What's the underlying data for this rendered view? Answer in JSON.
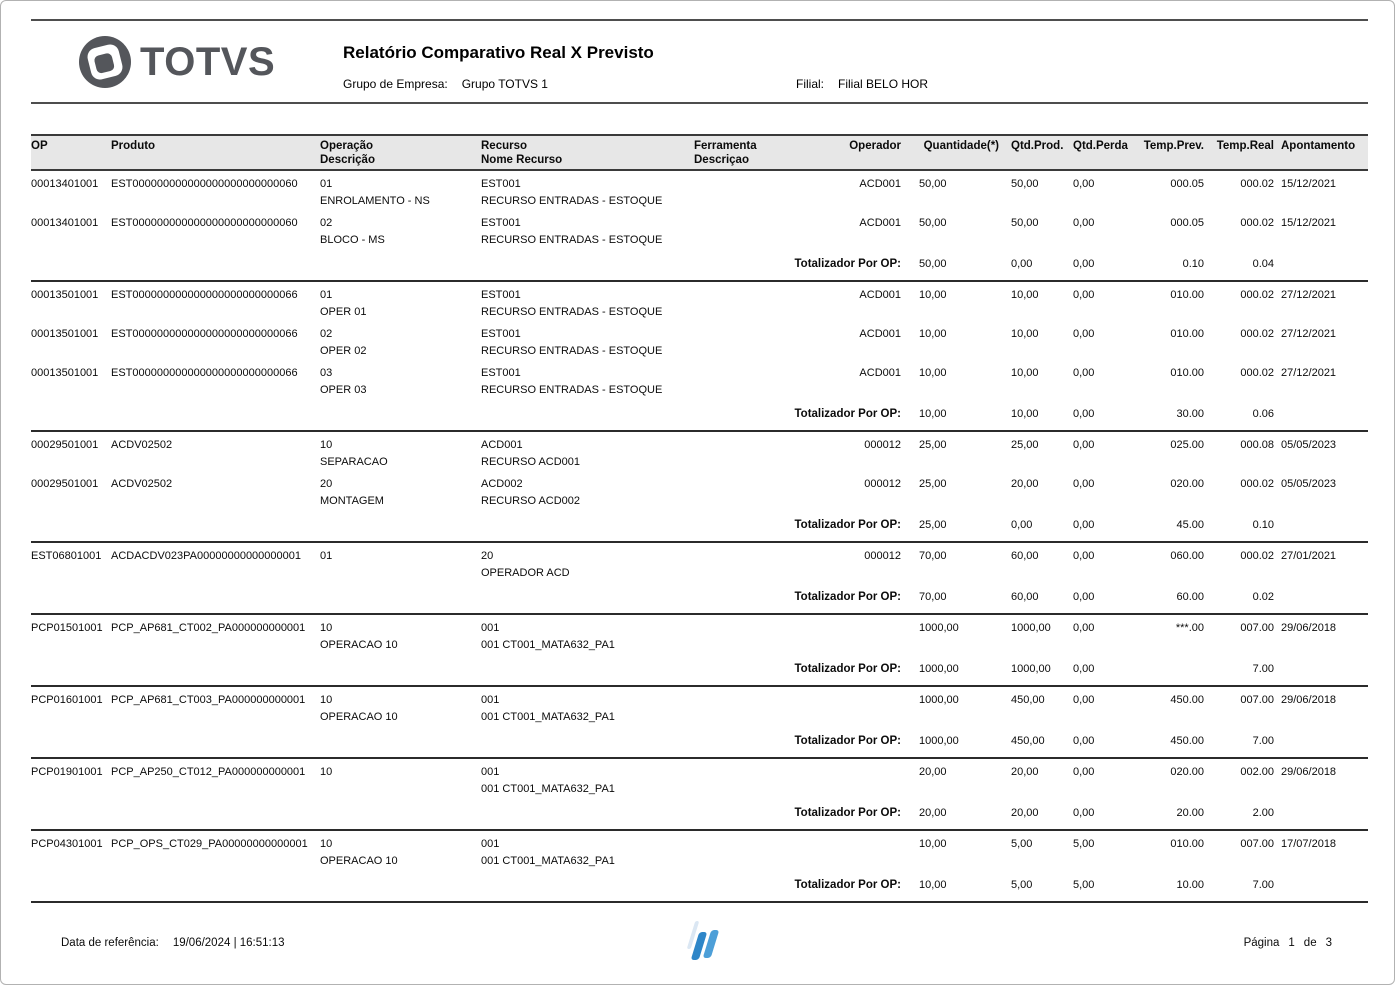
{
  "header": {
    "logo_text": "TOTVS",
    "title": "Relatório Comparativo Real X Previsto",
    "group_label": "Grupo de Empresa:",
    "group_value": "Grupo TOTVS 1",
    "branch_label": "Filial:",
    "branch_value": "Filial BELO HOR"
  },
  "table": {
    "columns": [
      {
        "l1": "OP",
        "l2": ""
      },
      {
        "l1": "Produto",
        "l2": ""
      },
      {
        "l1": "Operação",
        "l2": "Descrição"
      },
      {
        "l1": "Recurso",
        "l2": "Nome Recurso"
      },
      {
        "l1": "Ferramenta",
        "l2": "Descriçao"
      },
      {
        "l1": "Operador",
        "l2": ""
      },
      {
        "l1": "Quantidade(*)",
        "l2": ""
      },
      {
        "l1": "Qtd.Prod.",
        "l2": ""
      },
      {
        "l1": "Qtd.Perda",
        "l2": ""
      },
      {
        "l1": "Temp.Prev.",
        "l2": ""
      },
      {
        "l1": "Temp.Real",
        "l2": ""
      },
      {
        "l1": "Apontamento",
        "l2": ""
      }
    ],
    "totalizer_label": "Totalizador Por OP:",
    "groups": [
      {
        "rows": [
          {
            "op": "00013401001",
            "produto": "EST000000000000000000000000060",
            "op_code": "01",
            "op_desc": "ENROLAMENTO - NS",
            "rec": "EST001",
            "rec_desc": "RECURSO ENTRADAS - ESTOQUE",
            "ferr": "",
            "ferr_desc": "",
            "operador": "ACD001",
            "qtd": "50,00",
            "qtd_prod": "50,00",
            "qtd_perda": "0,00",
            "temp_prev": "000.05",
            "temp_real": "000.02",
            "apont": "15/12/2021"
          },
          {
            "op": "00013401001",
            "produto": "EST000000000000000000000000060",
            "op_code": "02",
            "op_desc": "BLOCO - MS",
            "rec": "EST001",
            "rec_desc": "RECURSO ENTRADAS - ESTOQUE",
            "ferr": "",
            "ferr_desc": "",
            "operador": "ACD001",
            "qtd": "50,00",
            "qtd_prod": "50,00",
            "qtd_perda": "0,00",
            "temp_prev": "000.05",
            "temp_real": "000.02",
            "apont": "15/12/2021"
          }
        ],
        "total": {
          "qtd": "50,00",
          "qtd_prod": "0,00",
          "qtd_perda": "0,00",
          "temp_prev": "0.10",
          "temp_real": "0.04"
        }
      },
      {
        "rows": [
          {
            "op": "00013501001",
            "produto": "EST000000000000000000000000066",
            "op_code": "01",
            "op_desc": "OPER 01",
            "rec": "EST001",
            "rec_desc": "RECURSO ENTRADAS - ESTOQUE",
            "ferr": "",
            "ferr_desc": "",
            "operador": "ACD001",
            "qtd": "10,00",
            "qtd_prod": "10,00",
            "qtd_perda": "0,00",
            "temp_prev": "010.00",
            "temp_real": "000.02",
            "apont": "27/12/2021"
          },
          {
            "op": "00013501001",
            "produto": "EST000000000000000000000000066",
            "op_code": "02",
            "op_desc": "OPER 02",
            "rec": "EST001",
            "rec_desc": "RECURSO ENTRADAS - ESTOQUE",
            "ferr": "",
            "ferr_desc": "",
            "operador": "ACD001",
            "qtd": "10,00",
            "qtd_prod": "10,00",
            "qtd_perda": "0,00",
            "temp_prev": "010.00",
            "temp_real": "000.02",
            "apont": "27/12/2021"
          },
          {
            "op": "00013501001",
            "produto": "EST000000000000000000000000066",
            "op_code": "03",
            "op_desc": "OPER 03",
            "rec": "EST001",
            "rec_desc": "RECURSO ENTRADAS - ESTOQUE",
            "ferr": "",
            "ferr_desc": "",
            "operador": "ACD001",
            "qtd": "10,00",
            "qtd_prod": "10,00",
            "qtd_perda": "0,00",
            "temp_prev": "010.00",
            "temp_real": "000.02",
            "apont": "27/12/2021"
          }
        ],
        "total": {
          "qtd": "10,00",
          "qtd_prod": "10,00",
          "qtd_perda": "0,00",
          "temp_prev": "30.00",
          "temp_real": "0.06"
        }
      },
      {
        "rows": [
          {
            "op": "00029501001",
            "produto": "ACDV02502",
            "op_code": "10",
            "op_desc": "SEPARACAO",
            "rec": "ACD001",
            "rec_desc": "RECURSO ACD001",
            "ferr": "",
            "ferr_desc": "",
            "operador": "000012",
            "qtd": "25,00",
            "qtd_prod": "25,00",
            "qtd_perda": "0,00",
            "temp_prev": "025.00",
            "temp_real": "000.08",
            "apont": "05/05/2023"
          },
          {
            "op": "00029501001",
            "produto": "ACDV02502",
            "op_code": "20",
            "op_desc": "MONTAGEM",
            "rec": "ACD002",
            "rec_desc": "RECURSO ACD002",
            "ferr": "",
            "ferr_desc": "",
            "operador": "000012",
            "qtd": "25,00",
            "qtd_prod": "20,00",
            "qtd_perda": "0,00",
            "temp_prev": "020.00",
            "temp_real": "000.02",
            "apont": "05/05/2023"
          }
        ],
        "total": {
          "qtd": "25,00",
          "qtd_prod": "0,00",
          "qtd_perda": "0,00",
          "temp_prev": "45.00",
          "temp_real": "0.10"
        }
      },
      {
        "rows": [
          {
            "op": "EST06801001",
            "produto": "ACDACDV023PA00000000000000001",
            "op_code": "01",
            "op_desc": "",
            "rec": "20",
            "rec_desc": "OPERADOR ACD",
            "ferr": "",
            "ferr_desc": "",
            "operador": "000012",
            "qtd": "70,00",
            "qtd_prod": "60,00",
            "qtd_perda": "0,00",
            "temp_prev": "060.00",
            "temp_real": "000.02",
            "apont": "27/01/2021"
          }
        ],
        "total": {
          "qtd": "70,00",
          "qtd_prod": "60,00",
          "qtd_perda": "0,00",
          "temp_prev": "60.00",
          "temp_real": "0.02"
        }
      },
      {
        "rows": [
          {
            "op": "PCP01501001",
            "produto": "PCP_AP681_CT002_PA000000000001",
            "op_code": "10",
            "op_desc": "OPERACAO 10",
            "rec": "001",
            "rec_desc": "001 CT001_MATA632_PA1",
            "ferr": "",
            "ferr_desc": "",
            "operador": "",
            "qtd": "1000,00",
            "qtd_prod": "1000,00",
            "qtd_perda": "0,00",
            "temp_prev": "***.00",
            "temp_real": "007.00",
            "apont": "29/06/2018"
          }
        ],
        "total": {
          "qtd": "1000,00",
          "qtd_prod": "1000,00",
          "qtd_perda": "0,00",
          "temp_prev": "",
          "temp_real": "7.00"
        }
      },
      {
        "rows": [
          {
            "op": "PCP01601001",
            "produto": "PCP_AP681_CT003_PA000000000001",
            "op_code": "10",
            "op_desc": "OPERACAO 10",
            "rec": "001",
            "rec_desc": "001 CT001_MATA632_PA1",
            "ferr": "",
            "ferr_desc": "",
            "operador": "",
            "qtd": "1000,00",
            "qtd_prod": "450,00",
            "qtd_perda": "0,00",
            "temp_prev": "450.00",
            "temp_real": "007.00",
            "apont": "29/06/2018"
          }
        ],
        "total": {
          "qtd": "1000,00",
          "qtd_prod": "450,00",
          "qtd_perda": "0,00",
          "temp_prev": "450.00",
          "temp_real": "7.00"
        }
      },
      {
        "rows": [
          {
            "op": "PCP01901001",
            "produto": "PCP_AP250_CT012_PA000000000001",
            "op_code": "10",
            "op_desc": "",
            "rec": "001",
            "rec_desc": "001 CT001_MATA632_PA1",
            "ferr": "",
            "ferr_desc": "",
            "operador": "",
            "qtd": "20,00",
            "qtd_prod": "20,00",
            "qtd_perda": "0,00",
            "temp_prev": "020.00",
            "temp_real": "002.00",
            "apont": "29/06/2018"
          }
        ],
        "total": {
          "qtd": "20,00",
          "qtd_prod": "20,00",
          "qtd_perda": "0,00",
          "temp_prev": "20.00",
          "temp_real": "2.00"
        }
      },
      {
        "rows": [
          {
            "op": "PCP04301001",
            "produto": "PCP_OPS_CT029_PA00000000000001",
            "op_code": "10",
            "op_desc": "OPERACAO 10",
            "rec": "001",
            "rec_desc": "001 CT001_MATA632_PA1",
            "ferr": "",
            "ferr_desc": "",
            "operador": "",
            "qtd": "10,00",
            "qtd_prod": "5,00",
            "qtd_perda": "5,00",
            "temp_prev": "010.00",
            "temp_real": "007.00",
            "apont": "17/07/2018"
          }
        ],
        "total": {
          "qtd": "10,00",
          "qtd_prod": "5,00",
          "qtd_perda": "5,00",
          "temp_prev": "10.00",
          "temp_real": "7.00"
        }
      }
    ]
  },
  "footer": {
    "reference_label": "Data de referência:",
    "reference_value": "19/06/2024 | 16:51:13",
    "page_label": "Página",
    "page_current": "1",
    "page_of": "de",
    "page_total": "3"
  },
  "colors": {
    "logo_gray": "#54565B",
    "header_band": "#E7E7E7",
    "accent_blue": "#2E86C8",
    "accent_blue_light": "#4D9FD8"
  }
}
